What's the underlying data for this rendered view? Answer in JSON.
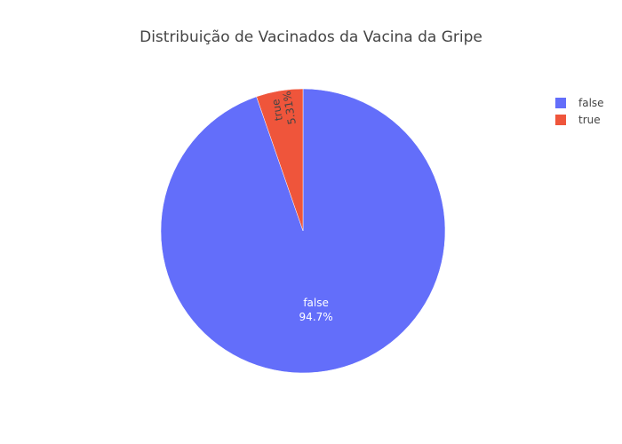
{
  "chart_data": {
    "type": "pie",
    "title": "Distribuição de Vacinados da Vacina da Gripe",
    "slices": [
      {
        "label": "false",
        "value": 94.7,
        "percent_label": "94.7%",
        "color": "#636efa"
      },
      {
        "label": "true",
        "value": 5.31,
        "percent_label": "5.31%",
        "color": "#ef553b"
      }
    ],
    "legend": {
      "position": "top-right",
      "entries": [
        "false",
        "true"
      ]
    }
  }
}
